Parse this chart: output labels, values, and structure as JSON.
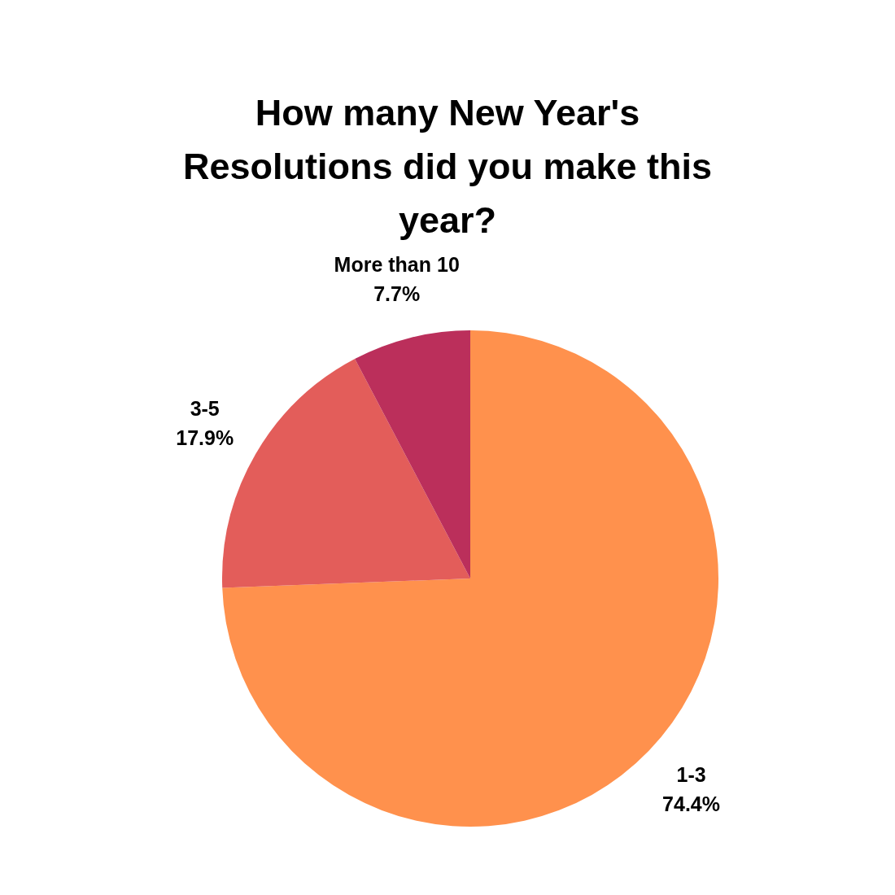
{
  "chart_data": {
    "type": "pie",
    "title": "How many New Year's Resolutions did you make this year?",
    "categories": [
      "1-3",
      "3-5",
      "More than 10"
    ],
    "values": [
      74.4,
      17.9,
      7.7
    ],
    "value_labels": [
      "74.4%",
      "17.9%",
      "7.7%"
    ],
    "colors": [
      "#ff914d",
      "#e35d5a",
      "#bb2f5b"
    ],
    "legend": false
  }
}
